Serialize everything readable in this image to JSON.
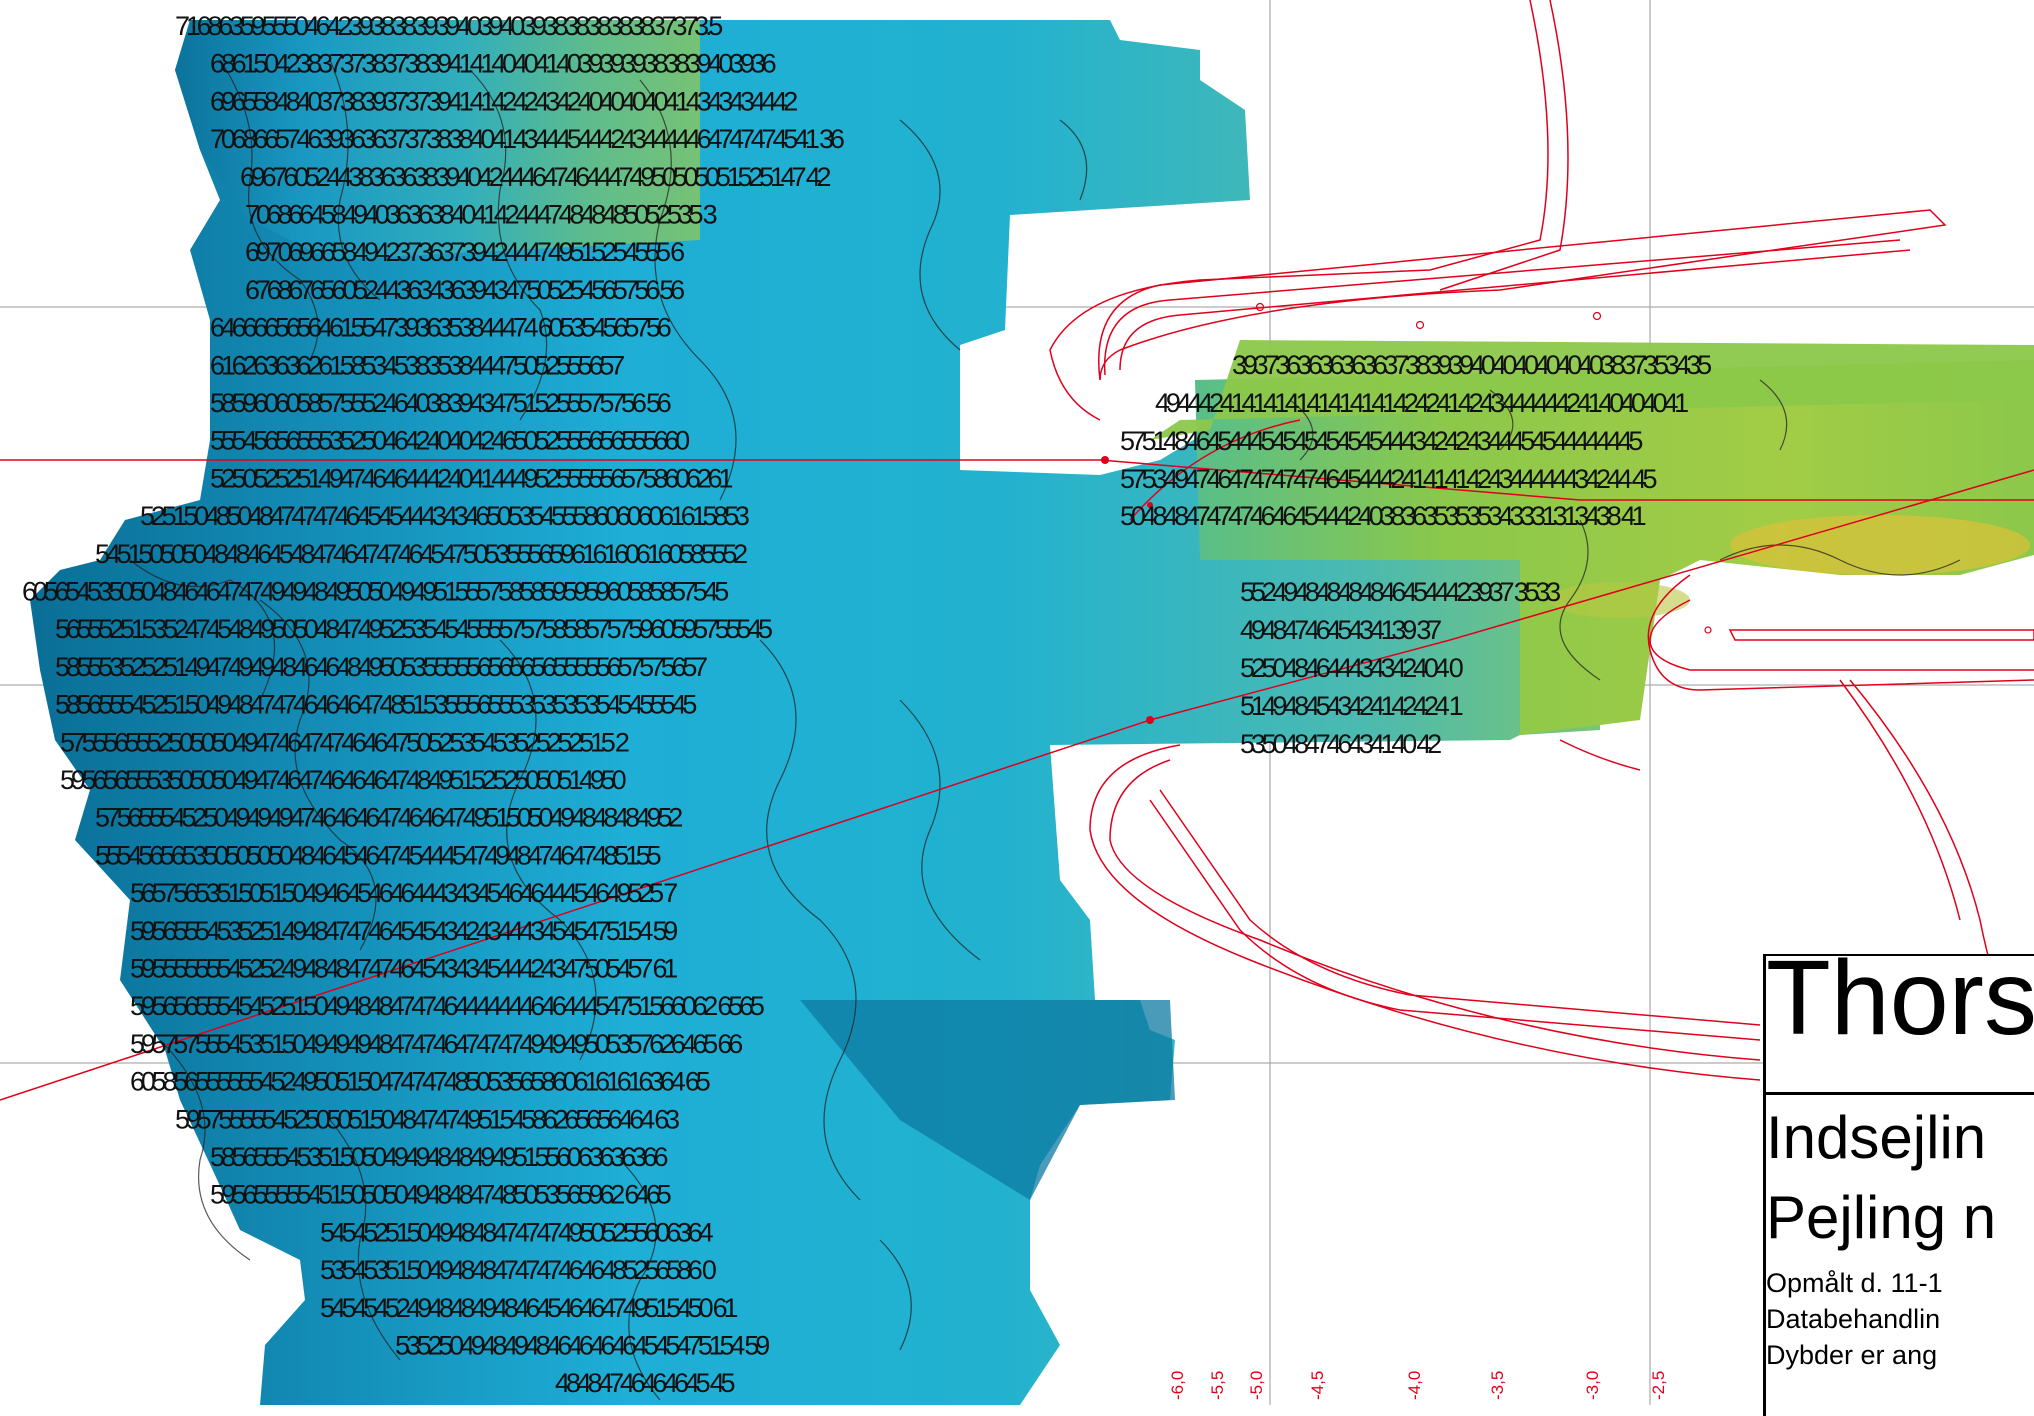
{
  "colors": {
    "deep": "#0a6e96",
    "mid": "#1eaed6",
    "shallow": "#8cc84a",
    "very_shallow": "#d8c23a",
    "channel_line": "#e0001c",
    "contour": "#222222",
    "grid": "#9a9a9a"
  },
  "depth_rows": [
    "7168635955504642393838393940394039383838383837373.5",
    "6861504238373738373839414140404140393939383839403936",
    "696558484037383937373941414242434240404040414343434442",
    "70686657463936363737383840414344454442434444464747474541 36",
    "6967605244383636383940424446474644474950505051525147 42",
    "706866458494036363840414244474848485052535 3",
    "697069665849423736373942444749515254555 6",
    "67686765605244363436394347505254565756 56",
    "646666565646155473936353844474 605354565756",
    "61626363626158534538353844475052555657",
    "5859606058575552464038394347515255575756 56",
    "55545656555352504642404042465052555656555660",
    "525052525149474646444240414449525555565758606261",
    "52515048504847474746454544434346505354555860606061615853",
    "545150505048484645484746474746454750535556596161606160585552",
    "60565453505048464647474949484950504949515557585859595960585857545",
    "565552515352474548495050484749525354545555757585857575960595755545",
    "585553525251494749494846464849505355555656565655555657575657",
    "58565554525150494847474646464748515355565553535353545455545",
    "575556555250505049474647474646475052535453525252515 2",
    "5956565553505050494746474646464748495152525050514950",
    "575655545250494949474646464746464749515050494848484952",
    "5554565653505050504846454647454445474948474647485155",
    "5657565351505150494645464644434345464644454649525 7",
    "595655545352514948474746454543424344434545475154 59",
    "595555555452524948484747464543434544424347505457 61",
    "595656555454525150494848474746444444464644454751566062 6565",
    "595757555453515049494948474746474747494949505357626465 66",
    "605856555555452495051504747474850535658606161616364 65",
    "59575555545250505150484747495154586265656464 63",
    "585655545351505049494848494951556063636366",
    "59565555545150505049484847485053565962 6465",
    "545452515049484847474749505255606364",
    "53545351504948484747474646485256586 0",
    "545454524948484948464546464749515450 61",
    "53525049484948464646464545475154 59",
    "48484746464645 45"
  ],
  "depth_rows_right": [
    "39373636363636373839394040404040403837353435",
    "4944424141414141414141424241424344444424140404041",
    "575148464544454545454545444342424344454544444445",
    "57534947464747474746454442414141424344444434244 45",
    "5048484747474646454442403836353535343331313438 41",
    "5524948484848464544423937 3533",
    "4948474645434139 37",
    "5250484644434342404 0",
    "5149484543424142424 1",
    "5350484746434140 42"
  ],
  "scale_labels": [
    "-6,0",
    "-5,5",
    "-5,0",
    "-4,5",
    "-4,0",
    "-3,5",
    "-3,0",
    "-2,5"
  ],
  "title": {
    "main": "Thors",
    "sub1": "Indsejlin",
    "sub2": "Pejling n",
    "note1": "Opmålt d. 11-1",
    "note2": "Databehandlin",
    "note3": "Dybder er ang"
  }
}
